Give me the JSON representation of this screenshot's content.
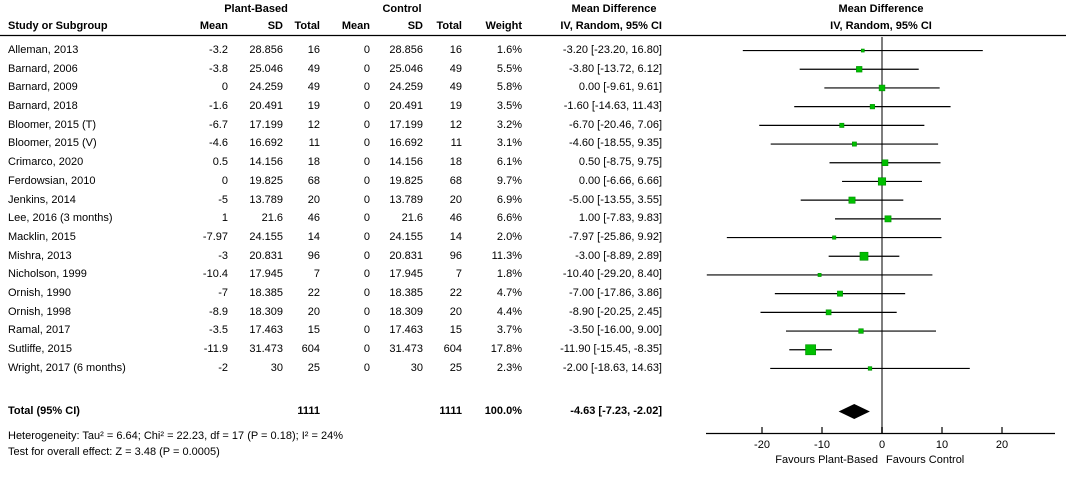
{
  "table": {
    "header": {
      "study": "Study or Subgroup",
      "group1": "Plant-Based",
      "group2": "Control",
      "mean1": "Mean",
      "sd1": "SD",
      "total1": "Total",
      "mean2": "Mean",
      "sd2": "SD",
      "total2": "Total",
      "weight": "Weight",
      "md_title": "Mean Difference",
      "md_sub": "IV, Random, 95% CI"
    },
    "plot_header": {
      "title": "Mean Difference",
      "sub": "IV, Random, 95% CI"
    }
  },
  "chart_data": {
    "type": "forest",
    "effect_measure": "Mean Difference",
    "method": "IV, Random, 95% CI",
    "xlim_display": [
      -29.5,
      29.5
    ],
    "studies": [
      {
        "name": "Alleman, 2013",
        "mean_pb": "-3.2",
        "sd_pb": "28.856",
        "n_pb": "16",
        "mean_c": "0",
        "sd_c": "28.856",
        "n_c": "16",
        "weight": "1.6%",
        "md_ci": "-3.20 [-23.20, 16.80]",
        "md": -3.2,
        "lo": -23.2,
        "hi": 16.8,
        "w": 1.6
      },
      {
        "name": "Barnard, 2006",
        "mean_pb": "-3.8",
        "sd_pb": "25.046",
        "n_pb": "49",
        "mean_c": "0",
        "sd_c": "25.046",
        "n_c": "49",
        "weight": "5.5%",
        "md_ci": "-3.80 [-13.72, 6.12]",
        "md": -3.8,
        "lo": -13.72,
        "hi": 6.12,
        "w": 5.5
      },
      {
        "name": "Barnard, 2009",
        "mean_pb": "0",
        "sd_pb": "24.259",
        "n_pb": "49",
        "mean_c": "0",
        "sd_c": "24.259",
        "n_c": "49",
        "weight": "5.8%",
        "md_ci": "0.00 [-9.61, 9.61]",
        "md": 0,
        "lo": -9.61,
        "hi": 9.61,
        "w": 5.8
      },
      {
        "name": "Barnard, 2018",
        "mean_pb": "-1.6",
        "sd_pb": "20.491",
        "n_pb": "19",
        "mean_c": "0",
        "sd_c": "20.491",
        "n_c": "19",
        "weight": "3.5%",
        "md_ci": "-1.60 [-14.63, 11.43]",
        "md": -1.6,
        "lo": -14.63,
        "hi": 11.43,
        "w": 3.5
      },
      {
        "name": "Bloomer, 2015 (T)",
        "mean_pb": "-6.7",
        "sd_pb": "17.199",
        "n_pb": "12",
        "mean_c": "0",
        "sd_c": "17.199",
        "n_c": "12",
        "weight": "3.2%",
        "md_ci": "-6.70 [-20.46, 7.06]",
        "md": -6.7,
        "lo": -20.46,
        "hi": 7.06,
        "w": 3.2
      },
      {
        "name": "Bloomer, 2015 (V)",
        "mean_pb": "-4.6",
        "sd_pb": "16.692",
        "n_pb": "11",
        "mean_c": "0",
        "sd_c": "16.692",
        "n_c": "11",
        "weight": "3.1%",
        "md_ci": "-4.60 [-18.55, 9.35]",
        "md": -4.6,
        "lo": -18.55,
        "hi": 9.35,
        "w": 3.1
      },
      {
        "name": "Crimarco, 2020",
        "mean_pb": "0.5",
        "sd_pb": "14.156",
        "n_pb": "18",
        "mean_c": "0",
        "sd_c": "14.156",
        "n_c": "18",
        "weight": "6.1%",
        "md_ci": "0.50 [-8.75, 9.75]",
        "md": 0.5,
        "lo": -8.75,
        "hi": 9.75,
        "w": 6.1
      },
      {
        "name": "Ferdowsian, 2010",
        "mean_pb": "0",
        "sd_pb": "19.825",
        "n_pb": "68",
        "mean_c": "0",
        "sd_c": "19.825",
        "n_c": "68",
        "weight": "9.7%",
        "md_ci": "0.00 [-6.66, 6.66]",
        "md": 0,
        "lo": -6.66,
        "hi": 6.66,
        "w": 9.7
      },
      {
        "name": "Jenkins, 2014",
        "mean_pb": "-5",
        "sd_pb": "13.789",
        "n_pb": "20",
        "mean_c": "0",
        "sd_c": "13.789",
        "n_c": "20",
        "weight": "6.9%",
        "md_ci": "-5.00 [-13.55, 3.55]",
        "md": -5,
        "lo": -13.55,
        "hi": 3.55,
        "w": 6.9
      },
      {
        "name": "Lee, 2016 (3 months)",
        "mean_pb": "1",
        "sd_pb": "21.6",
        "n_pb": "46",
        "mean_c": "0",
        "sd_c": "21.6",
        "n_c": "46",
        "weight": "6.6%",
        "md_ci": "1.00 [-7.83, 9.83]",
        "md": 1,
        "lo": -7.83,
        "hi": 9.83,
        "w": 6.6
      },
      {
        "name": "Macklin, 2015",
        "mean_pb": "-7.97",
        "sd_pb": "24.155",
        "n_pb": "14",
        "mean_c": "0",
        "sd_c": "24.155",
        "n_c": "14",
        "weight": "2.0%",
        "md_ci": "-7.97 [-25.86, 9.92]",
        "md": -7.97,
        "lo": -25.86,
        "hi": 9.92,
        "w": 2.0
      },
      {
        "name": "Mishra, 2013",
        "mean_pb": "-3",
        "sd_pb": "20.831",
        "n_pb": "96",
        "mean_c": "0",
        "sd_c": "20.831",
        "n_c": "96",
        "weight": "11.3%",
        "md_ci": "-3.00 [-8.89, 2.89]",
        "md": -3,
        "lo": -8.89,
        "hi": 2.89,
        "w": 11.3
      },
      {
        "name": "Nicholson, 1999",
        "mean_pb": "-10.4",
        "sd_pb": "17.945",
        "n_pb": "7",
        "mean_c": "0",
        "sd_c": "17.945",
        "n_c": "7",
        "weight": "1.8%",
        "md_ci": "-10.40 [-29.20, 8.40]",
        "md": -10.4,
        "lo": -29.2,
        "hi": 8.4,
        "w": 1.8
      },
      {
        "name": "Ornish, 1990",
        "mean_pb": "-7",
        "sd_pb": "18.385",
        "n_pb": "22",
        "mean_c": "0",
        "sd_c": "18.385",
        "n_c": "22",
        "weight": "4.7%",
        "md_ci": "-7.00 [-17.86, 3.86]",
        "md": -7,
        "lo": -17.86,
        "hi": 3.86,
        "w": 4.7
      },
      {
        "name": "Ornish, 1998",
        "mean_pb": "-8.9",
        "sd_pb": "18.309",
        "n_pb": "20",
        "mean_c": "0",
        "sd_c": "18.309",
        "n_c": "20",
        "weight": "4.4%",
        "md_ci": "-8.90 [-20.25, 2.45]",
        "md": -8.9,
        "lo": -20.25,
        "hi": 2.45,
        "w": 4.4
      },
      {
        "name": "Ramal, 2017",
        "mean_pb": "-3.5",
        "sd_pb": "17.463",
        "n_pb": "15",
        "mean_c": "0",
        "sd_c": "17.463",
        "n_c": "15",
        "weight": "3.7%",
        "md_ci": "-3.50 [-16.00, 9.00]",
        "md": -3.5,
        "lo": -16.0,
        "hi": 9.0,
        "w": 3.7
      },
      {
        "name": "Sutliffe, 2015",
        "mean_pb": "-11.9",
        "sd_pb": "31.473",
        "n_pb": "604",
        "mean_c": "0",
        "sd_c": "31.473",
        "n_c": "604",
        "weight": "17.8%",
        "md_ci": "-11.90 [-15.45, -8.35]",
        "md": -11.9,
        "lo": -15.45,
        "hi": -8.35,
        "w": 17.8
      },
      {
        "name": "Wright, 2017 (6 months)",
        "mean_pb": "-2",
        "sd_pb": "30",
        "n_pb": "25",
        "mean_c": "0",
        "sd_c": "30",
        "n_c": "25",
        "weight": "2.3%",
        "md_ci": "-2.00 [-18.63, 14.63]",
        "md": -2,
        "lo": -18.63,
        "hi": 14.63,
        "w": 2.3
      }
    ],
    "total_row": {
      "label": "Total (95% CI)",
      "n_pb": "1111",
      "n_c": "1111",
      "weight": "100.0%",
      "md_ci": "-4.63 [-7.23, -2.02]",
      "md": -4.63,
      "lo": -7.23,
      "hi": -2.02
    },
    "footnotes": {
      "heterogeneity": "Heterogeneity: Tau² = 6.64; Chi² = 22.23, df = 17 (P = 0.18); I² = 24%",
      "overall": "Test for overall effect: Z = 3.48 (P = 0.0005)"
    },
    "axis": {
      "ticks": [
        -20,
        -10,
        0,
        10,
        20
      ],
      "favours_left": "Favours Plant-Based",
      "favours_right": "Favours Control"
    },
    "colors": {
      "square": "#00bf00",
      "square_border": "#009000",
      "diamond": "#000000",
      "ci_line": "#000000",
      "zero_line": "#707070",
      "axis_line": "#000000"
    }
  }
}
